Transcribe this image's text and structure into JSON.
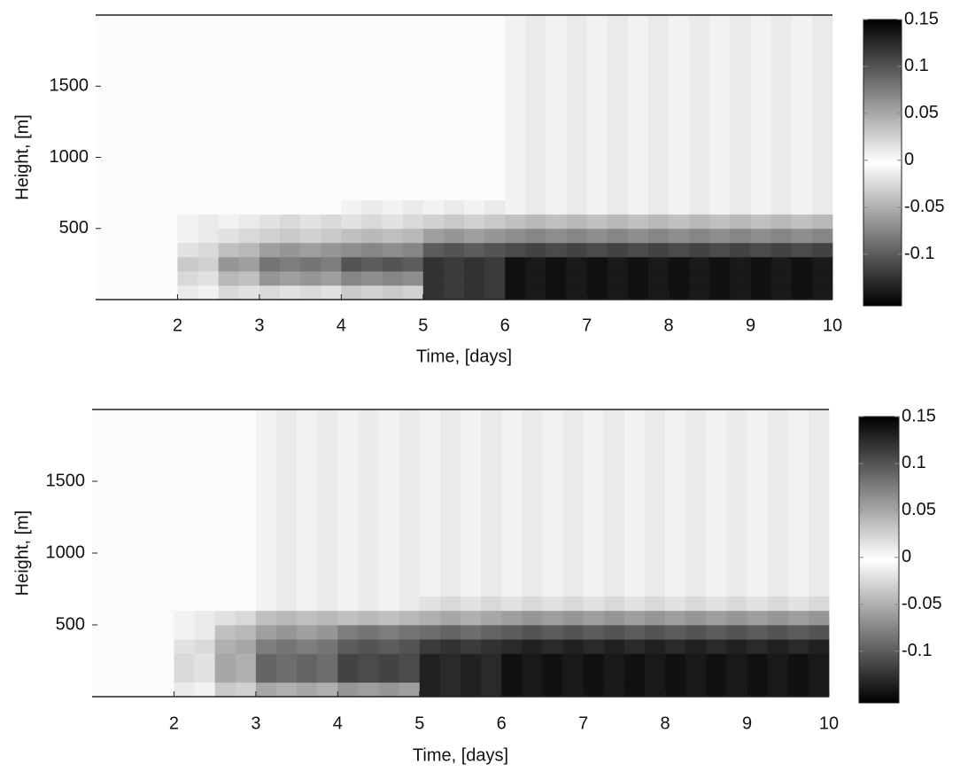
{
  "chart_data": [
    {
      "type": "heatmap",
      "xlabel": "Time, [days]",
      "ylabel": "Height, [m]",
      "xlim": [
        1,
        10
      ],
      "ylim": [
        0,
        2000
      ],
      "xticks": [
        2,
        3,
        4,
        5,
        6,
        7,
        8,
        9,
        10
      ],
      "yticks": [
        500,
        1000,
        1500
      ],
      "x_edges": [
        1,
        1.25,
        1.5,
        1.75,
        2,
        2.25,
        2.5,
        2.75,
        3,
        3.25,
        3.5,
        3.75,
        4,
        4.25,
        4.5,
        4.75,
        5,
        5.25,
        5.5,
        5.75,
        6,
        6.25,
        6.5,
        6.75,
        7,
        7.25,
        7.5,
        7.75,
        8,
        8.25,
        8.5,
        8.75,
        9,
        9.25,
        9.5,
        9.75,
        10
      ],
      "y_edges": [
        0,
        100,
        200,
        300,
        400,
        500,
        600,
        700,
        2000
      ],
      "colormap": [
        "#000000",
        "#ffffff",
        "#000000"
      ],
      "clim": [
        -0.155,
        0.15
      ],
      "cticks": [
        -0.1,
        -0.05,
        0,
        0.05,
        0.1,
        0.15
      ],
      "values": [
        [
          0,
          0,
          0,
          0,
          0.01,
          -0.01,
          0.02,
          -0.02,
          0.02,
          -0.02,
          0.02,
          -0.02,
          0.03,
          -0.03,
          0.03,
          -0.03,
          0.12,
          -0.12,
          0.12,
          -0.12,
          0.14,
          -0.14,
          0.14,
          -0.14,
          0.14,
          -0.14,
          0.14,
          -0.14,
          0.14,
          -0.14,
          0.14,
          -0.14,
          0.14,
          -0.14,
          0.14,
          -0.14
        ],
        [
          0,
          0,
          0,
          0,
          0.02,
          -0.02,
          0.04,
          -0.04,
          0.06,
          -0.06,
          0.06,
          -0.06,
          0.07,
          -0.07,
          0.07,
          -0.07,
          0.12,
          -0.12,
          0.12,
          -0.12,
          0.14,
          -0.14,
          0.14,
          -0.14,
          0.14,
          -0.14,
          0.14,
          -0.14,
          0.14,
          -0.14,
          0.14,
          -0.14,
          0.14,
          -0.14,
          0.14,
          -0.14
        ],
        [
          0,
          0,
          0,
          0,
          0.03,
          -0.03,
          0.06,
          -0.06,
          0.08,
          -0.08,
          0.08,
          -0.08,
          0.1,
          -0.1,
          0.1,
          -0.1,
          0.12,
          -0.12,
          0.12,
          -0.12,
          0.14,
          -0.14,
          0.14,
          -0.14,
          0.14,
          -0.14,
          0.14,
          -0.14,
          0.14,
          -0.14,
          0.14,
          -0.14,
          0.14,
          -0.14,
          0.14,
          -0.14
        ],
        [
          0,
          0,
          0,
          0,
          -0.02,
          0.02,
          -0.04,
          0.04,
          -0.06,
          0.06,
          -0.06,
          0.06,
          -0.07,
          0.07,
          -0.07,
          0.07,
          -0.1,
          0.1,
          -0.1,
          0.1,
          -0.11,
          0.11,
          -0.11,
          0.11,
          -0.11,
          0.11,
          -0.11,
          0.11,
          -0.11,
          0.11,
          -0.11,
          0.11,
          -0.11,
          0.11,
          -0.11,
          0.11
        ],
        [
          0,
          0,
          0,
          0,
          -0.01,
          0.01,
          -0.02,
          0.02,
          -0.03,
          0.03,
          -0.03,
          0.03,
          -0.04,
          0.04,
          -0.04,
          0.04,
          -0.06,
          0.06,
          -0.06,
          0.06,
          -0.07,
          0.07,
          -0.07,
          0.07,
          -0.07,
          0.07,
          -0.07,
          0.07,
          -0.07,
          0.07,
          -0.07,
          0.07,
          -0.07,
          0.07,
          -0.07,
          0.07
        ],
        [
          0,
          0,
          0,
          0,
          -0.01,
          0.01,
          -0.01,
          0.01,
          -0.02,
          0.02,
          -0.02,
          0.02,
          -0.02,
          0.02,
          -0.02,
          0.02,
          -0.03,
          0.03,
          -0.03,
          0.03,
          -0.04,
          0.04,
          -0.04,
          0.04,
          -0.04,
          0.04,
          -0.04,
          0.04,
          -0.04,
          0.04,
          -0.04,
          0.04,
          -0.04,
          0.04,
          -0.04,
          0.04
        ],
        [
          0,
          0,
          0,
          0,
          0,
          0,
          0,
          0,
          0,
          0,
          0,
          0,
          -0.01,
          0.01,
          -0.01,
          0.01,
          -0.01,
          0.01,
          -0.01,
          0.01,
          -0.01,
          0.01,
          -0.01,
          0.01,
          -0.01,
          0.01,
          -0.01,
          0.01,
          -0.01,
          0.01,
          -0.01,
          0.01,
          -0.01,
          0.01,
          -0.01,
          0.01
        ],
        [
          0,
          0,
          0,
          0,
          0,
          0,
          0,
          0,
          0,
          0,
          0,
          0,
          0,
          0,
          0,
          0,
          0,
          0,
          0,
          0,
          -0.01,
          0.01,
          -0.01,
          0.01,
          -0.01,
          0.01,
          -0.01,
          0.01,
          -0.01,
          0.01,
          -0.01,
          0.01,
          -0.01,
          0.01,
          -0.01,
          0.01
        ]
      ]
    },
    {
      "type": "heatmap",
      "xlabel": "Time, [days]",
      "ylabel": "Height, [m]",
      "xlim": [
        1,
        10
      ],
      "ylim": [
        0,
        2000
      ],
      "xticks": [
        2,
        3,
        4,
        5,
        6,
        7,
        8,
        9,
        10
      ],
      "yticks": [
        500,
        1000,
        1500
      ],
      "x_edges": [
        1,
        1.25,
        1.5,
        1.75,
        2,
        2.25,
        2.5,
        2.75,
        3,
        3.25,
        3.5,
        3.75,
        4,
        4.25,
        4.5,
        4.75,
        5,
        5.25,
        5.5,
        5.75,
        6,
        6.25,
        6.5,
        6.75,
        7,
        7.25,
        7.5,
        7.75,
        8,
        8.25,
        8.5,
        8.75,
        9,
        9.25,
        9.5,
        9.75,
        10
      ],
      "y_edges": [
        0,
        100,
        200,
        300,
        400,
        500,
        600,
        700,
        2000
      ],
      "colormap": [
        "#000000",
        "#ffffff",
        "#000000"
      ],
      "clim": [
        -0.155,
        0.15
      ],
      "cticks": [
        -0.1,
        -0.05,
        0,
        0.05,
        0.1,
        0.15
      ],
      "values": [
        [
          0,
          0,
          0,
          0,
          0.01,
          -0.01,
          0.03,
          -0.03,
          0.05,
          -0.05,
          0.05,
          -0.05,
          0.06,
          -0.06,
          0.06,
          -0.06,
          0.13,
          -0.13,
          0.13,
          -0.13,
          0.14,
          -0.14,
          0.14,
          -0.14,
          0.14,
          -0.14,
          0.14,
          -0.14,
          0.14,
          -0.14,
          0.14,
          -0.14,
          0.14,
          -0.14,
          0.14,
          -0.14
        ],
        [
          0,
          0,
          0,
          0,
          0.02,
          -0.02,
          0.05,
          -0.05,
          0.09,
          -0.09,
          0.09,
          -0.09,
          0.11,
          -0.11,
          0.11,
          -0.11,
          0.13,
          -0.13,
          0.13,
          -0.13,
          0.14,
          -0.14,
          0.14,
          -0.14,
          0.14,
          -0.14,
          0.14,
          -0.14,
          0.14,
          -0.14,
          0.14,
          -0.14,
          0.14,
          -0.14,
          0.14,
          -0.14
        ],
        [
          0,
          0,
          0,
          0,
          0.02,
          -0.02,
          0.05,
          -0.05,
          0.09,
          -0.09,
          0.09,
          -0.09,
          0.11,
          -0.11,
          0.11,
          -0.11,
          0.13,
          -0.13,
          0.13,
          -0.13,
          0.14,
          -0.14,
          0.14,
          -0.14,
          0.14,
          -0.14,
          0.14,
          -0.14,
          0.14,
          -0.14,
          0.14,
          -0.14,
          0.14,
          -0.14,
          0.14,
          -0.14
        ],
        [
          0,
          0,
          0,
          0,
          -0.02,
          0.02,
          -0.05,
          0.05,
          -0.08,
          0.08,
          -0.08,
          0.08,
          -0.1,
          0.1,
          -0.1,
          0.1,
          -0.12,
          0.12,
          -0.12,
          0.12,
          -0.13,
          0.13,
          -0.13,
          0.13,
          -0.13,
          0.13,
          -0.13,
          0.13,
          -0.13,
          0.13,
          -0.13,
          0.13,
          -0.13,
          0.13,
          -0.13,
          0.13
        ],
        [
          0,
          0,
          0,
          0,
          -0.01,
          0.01,
          -0.04,
          0.04,
          -0.06,
          0.06,
          -0.06,
          0.06,
          -0.08,
          0.08,
          -0.08,
          0.08,
          -0.09,
          0.09,
          -0.09,
          0.09,
          -0.1,
          0.1,
          -0.1,
          0.1,
          -0.1,
          0.1,
          -0.1,
          0.1,
          -0.1,
          0.1,
          -0.1,
          0.1,
          -0.1,
          0.1,
          -0.1,
          0.1
        ],
        [
          0,
          0,
          0,
          0,
          -0.01,
          0.01,
          -0.02,
          0.02,
          -0.04,
          0.04,
          -0.04,
          0.04,
          -0.04,
          0.04,
          -0.04,
          0.04,
          -0.05,
          0.05,
          -0.05,
          0.05,
          -0.06,
          0.06,
          -0.06,
          0.06,
          -0.06,
          0.06,
          -0.06,
          0.06,
          -0.06,
          0.06,
          -0.06,
          0.06,
          -0.06,
          0.06,
          -0.06,
          0.06
        ],
        [
          0,
          0,
          0,
          0,
          0,
          0,
          0,
          0,
          -0.01,
          0.01,
          -0.01,
          0.01,
          -0.01,
          0.01,
          -0.01,
          0.01,
          -0.02,
          0.02,
          -0.02,
          0.02,
          -0.02,
          0.02,
          -0.02,
          0.02,
          -0.02,
          0.02,
          -0.02,
          0.02,
          -0.02,
          0.02,
          -0.02,
          0.02,
          -0.02,
          0.02,
          -0.02,
          0.02
        ],
        [
          0,
          0,
          0,
          0,
          0,
          0,
          0,
          0,
          -0.01,
          0.01,
          -0.01,
          0.01,
          -0.01,
          0.01,
          -0.01,
          0.01,
          -0.01,
          0.01,
          -0.01,
          0.01,
          -0.01,
          0.01,
          -0.01,
          0.01,
          -0.01,
          0.01,
          -0.01,
          0.01,
          -0.01,
          0.01,
          -0.01,
          0.01,
          -0.01,
          0.01,
          -0.01,
          0.01
        ]
      ]
    }
  ]
}
